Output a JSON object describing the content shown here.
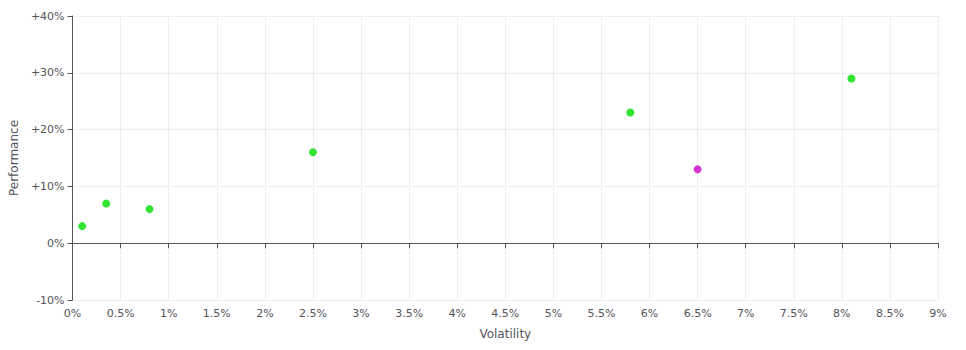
{
  "chart_data": {
    "type": "scatter",
    "x_label": "Volatility",
    "y_label": "Performance",
    "xlim": [
      0,
      0.09
    ],
    "ylim": [
      -0.1,
      0.4
    ],
    "xticks": [
      {
        "value": 0.0,
        "label": "0%"
      },
      {
        "value": 0.005,
        "label": "0.5%"
      },
      {
        "value": 0.01,
        "label": "1%"
      },
      {
        "value": 0.015,
        "label": "1.5%"
      },
      {
        "value": 0.02,
        "label": "2%"
      },
      {
        "value": 0.025,
        "label": "2.5%"
      },
      {
        "value": 0.03,
        "label": "3%"
      },
      {
        "value": 0.035,
        "label": "3.5%"
      },
      {
        "value": 0.04,
        "label": "4%"
      },
      {
        "value": 0.045,
        "label": "4.5%"
      },
      {
        "value": 0.05,
        "label": "5%"
      },
      {
        "value": 0.055,
        "label": "5.5%"
      },
      {
        "value": 0.06,
        "label": "6%"
      },
      {
        "value": 0.065,
        "label": "6.5%"
      },
      {
        "value": 0.07,
        "label": "7%"
      },
      {
        "value": 0.075,
        "label": "7.5%"
      },
      {
        "value": 0.08,
        "label": "8%"
      },
      {
        "value": 0.085,
        "label": "8.5%"
      },
      {
        "value": 0.09,
        "label": "9%"
      }
    ],
    "yticks": [
      {
        "value": -0.1,
        "label": "-10%"
      },
      {
        "value": 0.0,
        "label": "0%"
      },
      {
        "value": 0.1,
        "label": "+10%"
      },
      {
        "value": 0.2,
        "label": "+20%"
      },
      {
        "value": 0.3,
        "label": "+30%"
      },
      {
        "value": 0.4,
        "label": "+40%"
      }
    ],
    "grid": true,
    "series": [
      {
        "color": "#00dd00",
        "x": [
          0.001,
          0.0035,
          0.008,
          0.025,
          0.058,
          0.081
        ],
        "values": [
          0.03,
          0.07,
          0.06,
          0.16,
          0.23,
          0.29
        ]
      },
      {
        "color": "#cc00cc",
        "x": [
          0.065
        ],
        "values": [
          0.13
        ]
      }
    ]
  }
}
